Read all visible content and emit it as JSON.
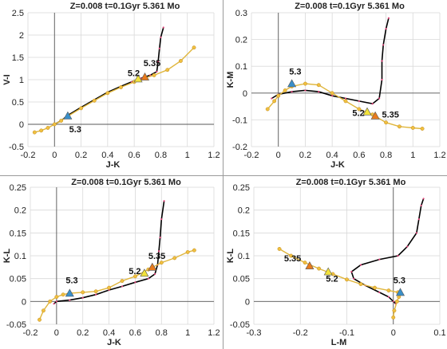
{
  "colors": {
    "track": "#000000",
    "track_points": "#e0447a",
    "isochrone": "#e0b63c",
    "isochrone_points": "#f0c040",
    "marker_blue": "#3a8fc8",
    "marker_yellow": "#f2e23a",
    "marker_orange": "#e87a1c",
    "grid": "#d9d9d9"
  },
  "chart_data": [
    {
      "type": "line",
      "title": "Z=0.008  t=0.1Gyr  5.361 Mo",
      "xlabel": "J-K",
      "ylabel": "V-I",
      "xlim": [
        -0.2,
        1.2
      ],
      "ylim": [
        -0.5,
        2.5
      ],
      "xticks": [
        "-0.2",
        "0",
        "0.2",
        "0.4",
        "0.6",
        "0.8",
        "1",
        "1.2"
      ],
      "yticks": [
        "-0.5",
        "0",
        "0.5",
        "1",
        "1.5",
        "2",
        "2.5"
      ],
      "grid": true,
      "series": [
        {
          "role": "track",
          "points": [
            [
              0.0,
              0.0
            ],
            [
              0.05,
              0.08
            ],
            [
              0.1,
              0.2
            ],
            [
              0.2,
              0.38
            ],
            [
              0.3,
              0.55
            ],
            [
              0.4,
              0.72
            ],
            [
              0.5,
              0.85
            ],
            [
              0.58,
              0.95
            ],
            [
              0.65,
              1.03
            ],
            [
              0.72,
              1.1
            ],
            [
              0.77,
              1.18
            ],
            [
              0.78,
              1.4
            ],
            [
              0.79,
              1.7
            ],
            [
              0.8,
              1.95
            ],
            [
              0.82,
              2.17
            ]
          ]
        },
        {
          "role": "isochrone",
          "points": [
            [
              -0.15,
              -0.18
            ],
            [
              -0.1,
              -0.14
            ],
            [
              -0.05,
              -0.08
            ],
            [
              0.0,
              0.0
            ],
            [
              0.05,
              0.08
            ],
            [
              0.1,
              0.18
            ],
            [
              0.2,
              0.36
            ],
            [
              0.3,
              0.53
            ],
            [
              0.4,
              0.7
            ],
            [
              0.5,
              0.83
            ],
            [
              0.6,
              0.95
            ],
            [
              0.68,
              1.04
            ],
            [
              0.75,
              1.1
            ],
            [
              0.85,
              1.22
            ],
            [
              0.95,
              1.42
            ],
            [
              1.05,
              1.72
            ]
          ]
        }
      ],
      "markers": [
        {
          "x": 0.1,
          "y": 0.19,
          "color": "blue"
        },
        {
          "x": 0.63,
          "y": 1.02,
          "color": "yellow"
        },
        {
          "x": 0.68,
          "y": 1.06,
          "color": "orange"
        }
      ],
      "annotations": [
        {
          "text": "5.3",
          "x": 0.11,
          "y": -0.18
        },
        {
          "text": "5.2",
          "x": 0.55,
          "y": 1.08
        },
        {
          "text": "5.35",
          "x": 0.67,
          "y": 1.3
        }
      ]
    },
    {
      "type": "line",
      "title": "Z=0.008  t=0.1Gyr  5.361 Mo",
      "xlabel": "J-K",
      "ylabel": "K-M",
      "xlim": [
        -0.2,
        1.2
      ],
      "ylim": [
        -0.2,
        0.3
      ],
      "xticks": [
        "-0.2",
        "0",
        "0.2",
        "0.4",
        "0.6",
        "0.8",
        "1",
        "1.2"
      ],
      "yticks": [
        "-0.2",
        "-0.1",
        "0",
        "0.1",
        "0.2",
        "0.3"
      ],
      "grid": true,
      "series": [
        {
          "role": "track",
          "points": [
            [
              -0.05,
              -0.02
            ],
            [
              0.0,
              -0.005
            ],
            [
              0.1,
              0.005
            ],
            [
              0.2,
              0.01
            ],
            [
              0.3,
              0.005
            ],
            [
              0.4,
              -0.01
            ],
            [
              0.5,
              -0.02
            ],
            [
              0.6,
              -0.03
            ],
            [
              0.7,
              -0.04
            ],
            [
              0.75,
              -0.02
            ],
            [
              0.77,
              0.05
            ],
            [
              0.77,
              0.12
            ],
            [
              0.78,
              0.18
            ],
            [
              0.8,
              0.24
            ],
            [
              0.82,
              0.28
            ]
          ]
        },
        {
          "role": "isochrone",
          "points": [
            [
              -0.08,
              -0.06
            ],
            [
              -0.03,
              -0.03
            ],
            [
              0.0,
              -0.01
            ],
            [
              0.05,
              0.01
            ],
            [
              0.1,
              0.025
            ],
            [
              0.2,
              0.035
            ],
            [
              0.3,
              0.03
            ],
            [
              0.4,
              0.0
            ],
            [
              0.5,
              -0.03
            ],
            [
              0.6,
              -0.06
            ],
            [
              0.7,
              -0.08
            ],
            [
              0.8,
              -0.11
            ],
            [
              0.9,
              -0.125
            ],
            [
              1.0,
              -0.13
            ],
            [
              1.07,
              -0.133
            ]
          ]
        }
      ],
      "markers": [
        {
          "x": 0.1,
          "y": 0.035,
          "color": "blue"
        },
        {
          "x": 0.66,
          "y": -0.07,
          "color": "yellow"
        },
        {
          "x": 0.72,
          "y": -0.085,
          "color": "orange"
        }
      ],
      "annotations": [
        {
          "text": "5.3",
          "x": 0.08,
          "y": 0.07
        },
        {
          "text": "5.2",
          "x": 0.55,
          "y": -0.085
        },
        {
          "text": "5.35",
          "x": 0.77,
          "y": -0.092
        }
      ]
    },
    {
      "type": "line",
      "title": "Z=0.008  t=0.1Gyr  5.361 Mo",
      "xlabel": "J-K",
      "ylabel": "K-L",
      "xlim": [
        -0.2,
        1.2
      ],
      "ylim": [
        -0.05,
        0.25
      ],
      "xticks": [
        "-0.2",
        "0",
        "0.2",
        "0.4",
        "0.6",
        "0.8",
        "1",
        "1.2"
      ],
      "yticks": [
        "-0.05",
        "0",
        "0.05",
        "0.1",
        "0.15",
        "0.2",
        "0.25"
      ],
      "grid": true,
      "series": [
        {
          "role": "track",
          "points": [
            [
              -0.02,
              -0.005
            ],
            [
              0.0,
              0.0
            ],
            [
              0.1,
              0.003
            ],
            [
              0.2,
              0.008
            ],
            [
              0.3,
              0.015
            ],
            [
              0.4,
              0.025
            ],
            [
              0.5,
              0.033
            ],
            [
              0.6,
              0.042
            ],
            [
              0.7,
              0.05
            ],
            [
              0.75,
              0.06
            ],
            [
              0.77,
              0.08
            ],
            [
              0.78,
              0.11
            ],
            [
              0.79,
              0.14
            ],
            [
              0.8,
              0.18
            ],
            [
              0.82,
              0.22
            ]
          ]
        },
        {
          "role": "isochrone",
          "points": [
            [
              -0.13,
              -0.04
            ],
            [
              -0.1,
              -0.02
            ],
            [
              -0.05,
              0.0
            ],
            [
              0.0,
              0.01
            ],
            [
              0.05,
              0.015
            ],
            [
              0.1,
              0.018
            ],
            [
              0.2,
              0.02
            ],
            [
              0.3,
              0.022
            ],
            [
              0.4,
              0.03
            ],
            [
              0.5,
              0.045
            ],
            [
              0.6,
              0.055
            ],
            [
              0.7,
              0.07
            ],
            [
              0.8,
              0.085
            ],
            [
              0.9,
              0.095
            ],
            [
              1.0,
              0.108
            ],
            [
              1.05,
              0.112
            ]
          ]
        }
      ],
      "markers": [
        {
          "x": 0.1,
          "y": 0.018,
          "color": "blue"
        },
        {
          "x": 0.67,
          "y": 0.062,
          "color": "yellow"
        },
        {
          "x": 0.73,
          "y": 0.075,
          "color": "orange"
        }
      ],
      "annotations": [
        {
          "text": "5.3",
          "x": 0.07,
          "y": 0.04
        },
        {
          "text": "5.2",
          "x": 0.55,
          "y": 0.06
        },
        {
          "text": "5.35",
          "x": 0.7,
          "y": 0.093
        }
      ]
    },
    {
      "type": "line",
      "title": "Z=0.008  t=0.1Gyr  5.361 Mo",
      "xlabel": "L-M",
      "ylabel": "K-L",
      "xlim": [
        -0.3,
        0.1
      ],
      "ylim": [
        -0.05,
        0.25
      ],
      "xticks": [
        "-0.3",
        "-0.2",
        "-0.1",
        "0",
        "0.1"
      ],
      "yticks": [
        "-0.05",
        "0",
        "0.05",
        "0.1",
        "0.15",
        "0.2",
        "0.25"
      ],
      "grid": true,
      "series": [
        {
          "role": "track",
          "points": [
            [
              0.005,
              -0.005
            ],
            [
              0.0,
              0.0
            ],
            [
              -0.01,
              0.01
            ],
            [
              -0.03,
              0.02
            ],
            [
              -0.06,
              0.035
            ],
            [
              -0.085,
              0.05
            ],
            [
              -0.09,
              0.065
            ],
            [
              -0.07,
              0.08
            ],
            [
              -0.03,
              0.092
            ],
            [
              0.01,
              0.1
            ],
            [
              0.03,
              0.12
            ],
            [
              0.05,
              0.15
            ],
            [
              0.055,
              0.18
            ],
            [
              0.06,
              0.21
            ],
            [
              0.065,
              0.225
            ]
          ]
        },
        {
          "role": "isochrone",
          "points": [
            [
              -0.245,
              0.115
            ],
            [
              -0.22,
              0.1
            ],
            [
              -0.19,
              0.085
            ],
            [
              -0.16,
              0.072
            ],
            [
              -0.13,
              0.06
            ],
            [
              -0.1,
              0.048
            ],
            [
              -0.07,
              0.038
            ],
            [
              -0.04,
              0.03
            ],
            [
              -0.01,
              0.024
            ],
            [
              0.01,
              0.02
            ],
            [
              0.012,
              0.01
            ],
            [
              0.008,
              0.0
            ],
            [
              0.002,
              -0.02
            ],
            [
              0.0,
              -0.035
            ]
          ]
        }
      ],
      "markers": [
        {
          "x": 0.015,
          "y": 0.02,
          "color": "blue"
        },
        {
          "x": -0.14,
          "y": 0.065,
          "color": "yellow"
        },
        {
          "x": -0.18,
          "y": 0.078,
          "color": "orange"
        }
      ],
      "annotations": [
        {
          "text": "5.35",
          "x": -0.235,
          "y": 0.088
        },
        {
          "text": "5.2",
          "x": -0.145,
          "y": 0.043
        },
        {
          "text": "5.3",
          "x": 0.0,
          "y": 0.04
        }
      ]
    }
  ]
}
